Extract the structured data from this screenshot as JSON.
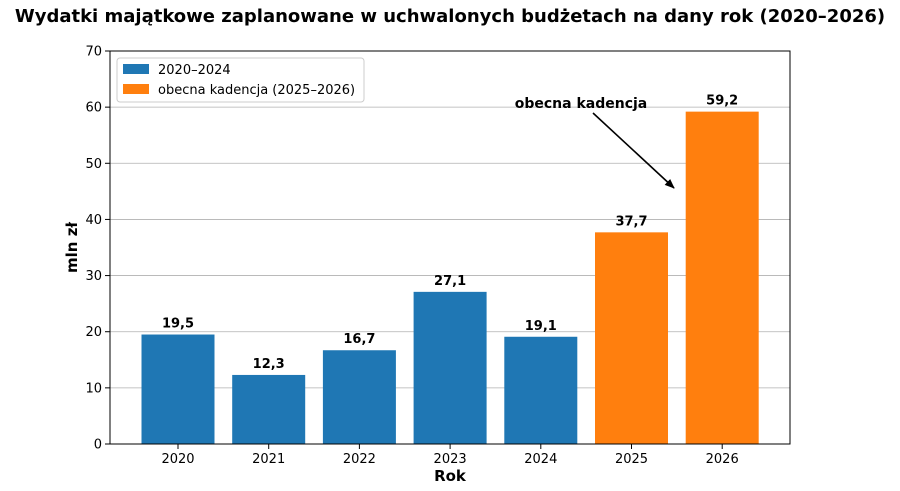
{
  "chart_data": {
    "type": "bar",
    "title": "Wydatki majątkowe zaplanowane w uchwalonych budżetach na dany rok (2020–2026)",
    "xlabel": "Rok",
    "ylabel": "mln zł",
    "ylim": [
      0,
      70
    ],
    "yticks": [
      0,
      10,
      20,
      30,
      40,
      50,
      60,
      70
    ],
    "grid": "horizontal",
    "legend_position": "top-left",
    "categories": [
      "2020",
      "2021",
      "2022",
      "2023",
      "2024",
      "2025",
      "2026"
    ],
    "values": [
      19.5,
      12.3,
      16.7,
      27.1,
      19.1,
      37.7,
      59.2
    ],
    "value_labels": [
      "19,5",
      "12,3",
      "16,7",
      "27,1",
      "19,1",
      "37,7",
      "59,2"
    ],
    "groups": [
      0,
      0,
      0,
      0,
      0,
      1,
      1
    ],
    "legend": [
      {
        "label": "2020–2024",
        "color": "#1f77b4"
      },
      {
        "label": "obecna kadencja (2025–2026)",
        "color": "#ff7f0e"
      }
    ],
    "annotation": {
      "text": "obecna kadencja",
      "points_to_category": "2026"
    }
  }
}
